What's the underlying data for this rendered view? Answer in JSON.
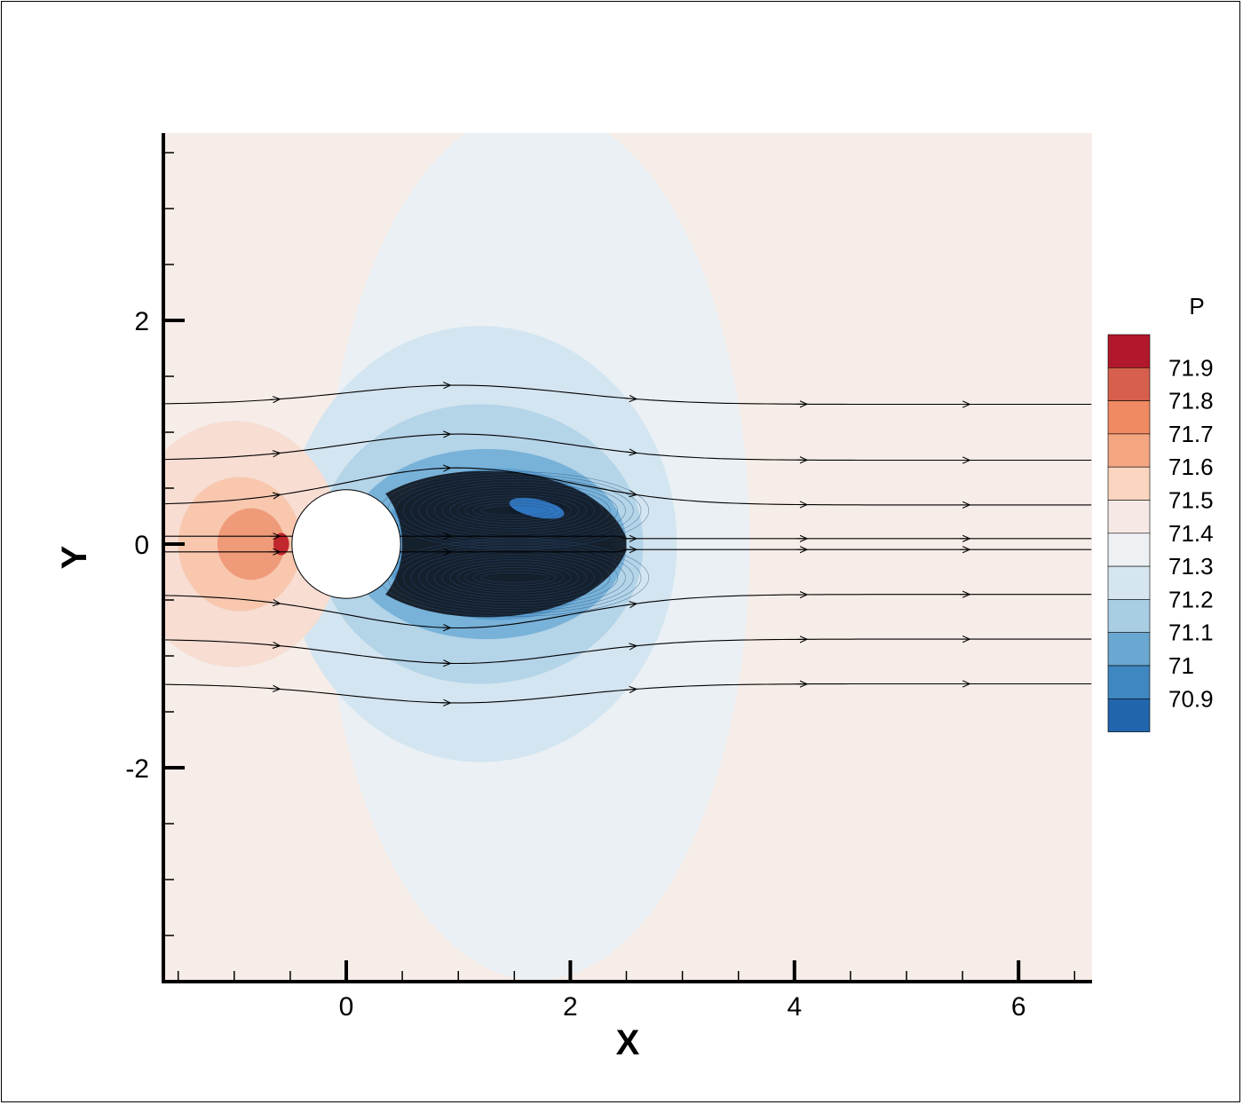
{
  "chart_data": {
    "type": "heatmap",
    "subtype": "filled-contour-with-streamlines",
    "title": "",
    "xlabel": "X",
    "ylabel": "Y",
    "xlim": [
      -1.65,
      6.65
    ],
    "ylim": [
      -3.9,
      3.65
    ],
    "x_ticks": [
      0,
      2,
      4,
      6
    ],
    "x_tick_labels": [
      "0",
      "2",
      "4",
      "6"
    ],
    "y_ticks": [
      -2,
      0,
      2
    ],
    "y_tick_labels": [
      "-2",
      "0",
      "2"
    ],
    "grid": false,
    "legend": {
      "title": "P",
      "placement": "right",
      "levels": [
        "71.9",
        "71.8",
        "71.7",
        "71.6",
        "71.5",
        "71.4",
        "71.3",
        "71.2",
        "71.1",
        "71",
        "70.9"
      ],
      "colors": [
        "#b2182b",
        "#d6604d",
        "#ef8a62",
        "#f4a582",
        "#fbd5c0",
        "#f6e8e4",
        "#eef1f3",
        "#d6e6f0",
        "#a9cde3",
        "#6aa8d1",
        "#3f87c0",
        "#2166ac"
      ]
    },
    "background_level_color": "#f6ece8",
    "obstacle": {
      "shape": "circle",
      "center": [
        0,
        0
      ],
      "radius": 0.5
    },
    "contours": [
      {
        "level": 71.3,
        "color": "#eaf0f4",
        "cx": 1.7,
        "cy": 0,
        "rx": 1.9,
        "ry": 3.9
      },
      {
        "level": 71.2,
        "color": "#d3e5f0",
        "cx": 1.2,
        "cy": 0,
        "rx": 1.75,
        "ry": 1.95
      },
      {
        "level": 71.1,
        "color": "#b4d4e8",
        "cx": 1.2,
        "cy": 0,
        "rx": 1.45,
        "ry": 1.25
      },
      {
        "level": 71.0,
        "color": "#78b2d9",
        "cx": 1.25,
        "cy": 0,
        "rx": 1.25,
        "ry": 0.85
      },
      {
        "level": 70.9,
        "color": "#5d9fd0",
        "cx": 1.35,
        "cy": 0,
        "rx": 1.05,
        "ry": 0.68
      },
      {
        "level": 70.85,
        "color": "#2f76c0",
        "cx": 1.7,
        "cy": 0.32,
        "rx": 0.25,
        "ry": 0.08
      },
      {
        "level": 71.5,
        "color": "#f7ddd2",
        "cx": -1.0,
        "cy": 0,
        "rx": 0.95,
        "ry": 1.1
      },
      {
        "level": 71.6,
        "color": "#f8c7ae",
        "cx": -0.95,
        "cy": 0,
        "rx": 0.55,
        "ry": 0.6
      },
      {
        "level": 71.7,
        "color": "#ef9a78",
        "cx": -0.85,
        "cy": 0,
        "rx": 0.3,
        "ry": 0.32
      },
      {
        "level": 71.9,
        "color": "#c1272d",
        "cx": -0.58,
        "cy": 0,
        "rx": 0.07,
        "ry": 0.1
      }
    ],
    "streamline_seeds_y": [
      1.25,
      0.75,
      0.35,
      0.07,
      -0.07,
      -0.45,
      -0.85,
      -1.25
    ]
  }
}
